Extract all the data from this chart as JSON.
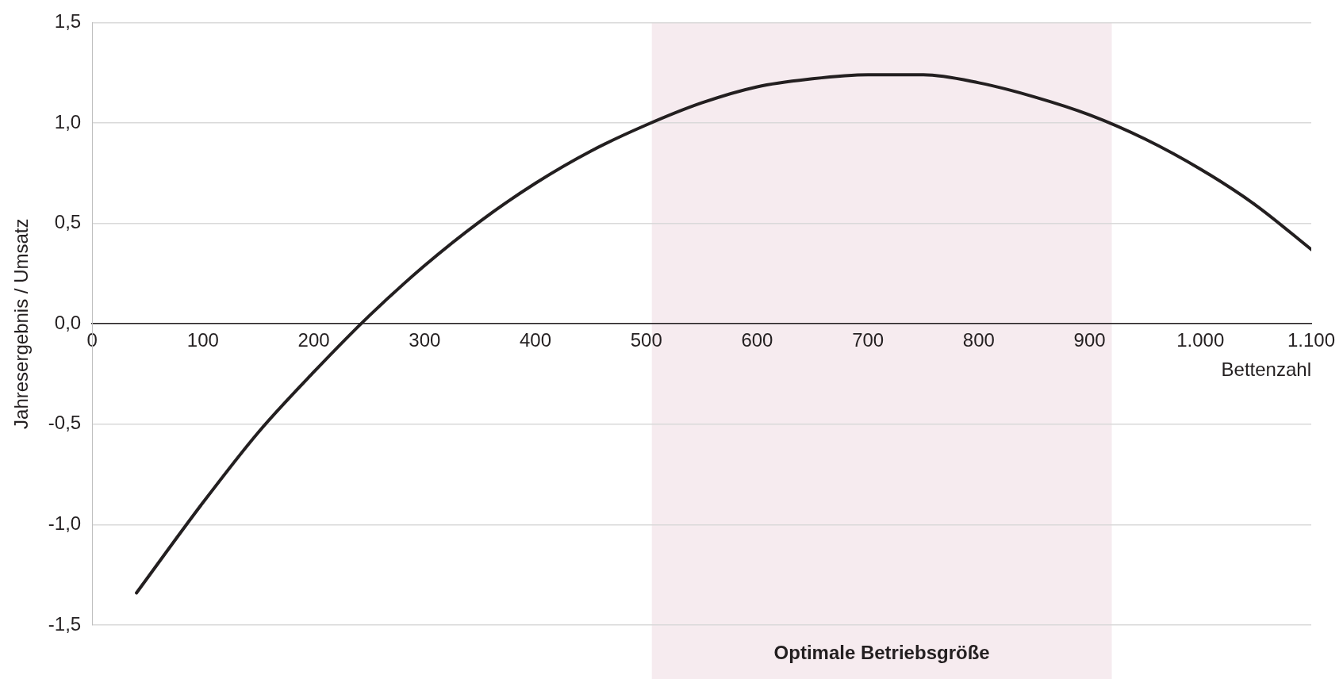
{
  "chart_data": {
    "type": "line",
    "xlabel": "Bettenzahl",
    "ylabel": "Jahresergebnis / Umsatz",
    "x": [
      40,
      100,
      150,
      200,
      250,
      300,
      350,
      400,
      450,
      500,
      550,
      600,
      650,
      700,
      750,
      800,
      850,
      900,
      950,
      1000,
      1050,
      1100
    ],
    "series": [
      {
        "color": "#231f20",
        "values": [
          -1.34,
          -0.89,
          -0.54,
          -0.24,
          0.04,
          0.29,
          0.51,
          0.7,
          0.86,
          0.99,
          1.1,
          1.18,
          1.22,
          1.24,
          1.24,
          1.2,
          1.13,
          1.04,
          0.92,
          0.77,
          0.59,
          0.37
        ]
      }
    ],
    "xlim": [
      0,
      1100
    ],
    "ylim": [
      -1.5,
      1.5
    ],
    "xticks": [
      0,
      100,
      200,
      300,
      400,
      500,
      600,
      700,
      800,
      900,
      {
        "value": 1000,
        "label": "1.000"
      },
      {
        "value": 1100,
        "label": "1.100"
      }
    ],
    "yticks": [
      {
        "value": -1.5,
        "label": "-1,5"
      },
      {
        "value": -1,
        "label": "-1,0"
      },
      {
        "value": -0.5,
        "label": "-0,5"
      },
      {
        "value": 0,
        "label": "0,0"
      },
      {
        "value": 0.5,
        "label": "0,5"
      },
      {
        "value": 1,
        "label": "1,0"
      },
      {
        "value": 1.5,
        "label": "1,5"
      }
    ],
    "bands": [
      {
        "axis": "x",
        "from": 505,
        "to": 920,
        "label": "Optimale Betriebsgröße",
        "color": "#f6ebef"
      }
    ],
    "grid": "y",
    "legend": false,
    "marker": "none",
    "line_style": "solid"
  }
}
